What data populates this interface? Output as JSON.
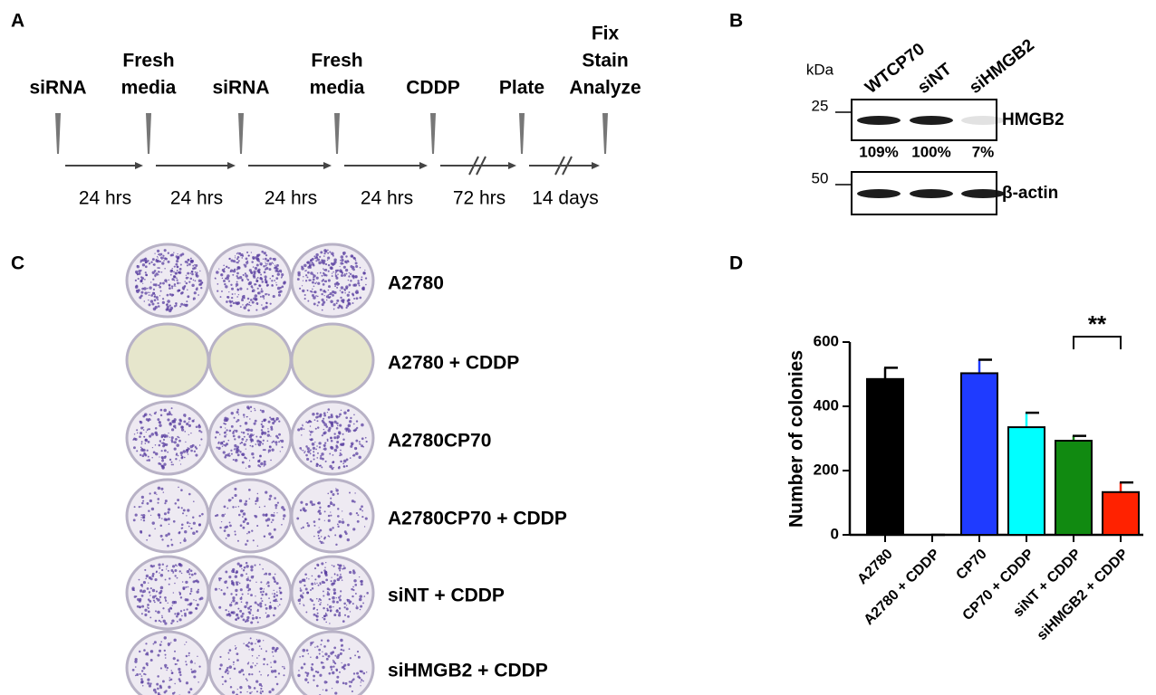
{
  "panels": {
    "a": {
      "label": "A",
      "events": [
        [
          "siRNA"
        ],
        [
          "Fresh",
          "media"
        ],
        [
          "siRNA"
        ],
        [
          "Fresh",
          "media"
        ],
        [
          "CDDP"
        ],
        [
          "Plate"
        ],
        [
          "Fix",
          "Stain",
          "Analyze"
        ]
      ],
      "durations": [
        "24 hrs",
        "24 hrs",
        "24 hrs",
        "24 hrs",
        "72 hrs",
        "14 days"
      ]
    },
    "b": {
      "label": "B",
      "unit": "kDa",
      "lanes": [
        "WTCP70",
        "siNT",
        "siHMGB2"
      ],
      "lane_colors": [
        "#000000",
        "#000000",
        "#e8120c"
      ],
      "markers": [
        "25",
        "50"
      ],
      "proteins": [
        "HMGB2",
        "β-actin"
      ],
      "quantification": [
        "109%",
        "100%",
        "7%"
      ],
      "quantification_colors": [
        "#000000",
        "#000000",
        "#e8120c"
      ]
    },
    "c": {
      "label": "C",
      "rows": [
        "A2780",
        "A2780 + CDDP",
        "A2780CP70",
        "A2780CP70 + CDDP",
        "siNT + CDDP",
        "siHMGB2 + CDDP"
      ]
    },
    "d": {
      "label": "D",
      "significance": "**"
    }
  },
  "chart_data": {
    "type": "bar",
    "y_label": "Number of colonies",
    "categories": [
      "A2780",
      "A2780 + CDDP",
      "CP70",
      "CP70 + CDDP",
      "siNT + CDDP",
      "siHMGB2 + CDDP"
    ],
    "values": [
      485,
      0,
      503,
      335,
      293,
      133
    ],
    "errors": [
      35,
      0,
      42,
      45,
      15,
      30
    ],
    "colors": [
      "#000000",
      "#000000",
      "#1f3bff",
      "#00ffff",
      "#118a11",
      "#ff2200"
    ],
    "ylim": [
      0,
      600
    ],
    "yticks": [
      0,
      200,
      400,
      600
    ]
  }
}
